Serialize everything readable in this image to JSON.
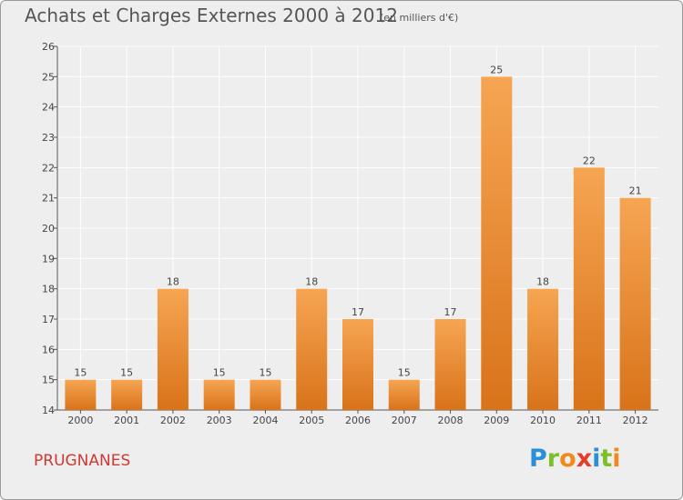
{
  "header": {
    "title": "Achats et Charges Externes 2000 à 2012",
    "subtitle": "(en milliers d'€)"
  },
  "footer": {
    "commune": "PRUGNANES",
    "logo": {
      "letters": [
        "P",
        "r",
        "o",
        "x",
        "i",
        "t",
        "i"
      ],
      "colors": [
        "#2a8fd6",
        "#7bbf2a",
        "#f08a1c",
        "#e63c2c",
        "#2a8fd6",
        "#7bbf2a",
        "#f08a1c"
      ]
    }
  },
  "colors": {
    "bar_light": "#f6a552",
    "bar_dark": "#d9731a",
    "background": "#eeeeee",
    "grid": "#ffffff",
    "commune": "#cc3a33"
  },
  "chart_data": {
    "type": "bar",
    "title": "Achats et Charges Externes 2000 à 2012",
    "subtitle": "(en milliers d'€)",
    "xlabel": "",
    "ylabel": "",
    "categories": [
      "2000",
      "2001",
      "2002",
      "2003",
      "2004",
      "2005",
      "2006",
      "2007",
      "2008",
      "2009",
      "2010",
      "2011",
      "2012"
    ],
    "values": [
      15,
      15,
      18,
      15,
      15,
      18,
      17,
      15,
      17,
      25,
      18,
      22,
      21
    ],
    "ylim": [
      14,
      26
    ],
    "yticks": [
      14,
      15,
      16,
      17,
      18,
      19,
      20,
      21,
      22,
      23,
      24,
      25,
      26
    ],
    "grid": true,
    "data_labels": true
  }
}
